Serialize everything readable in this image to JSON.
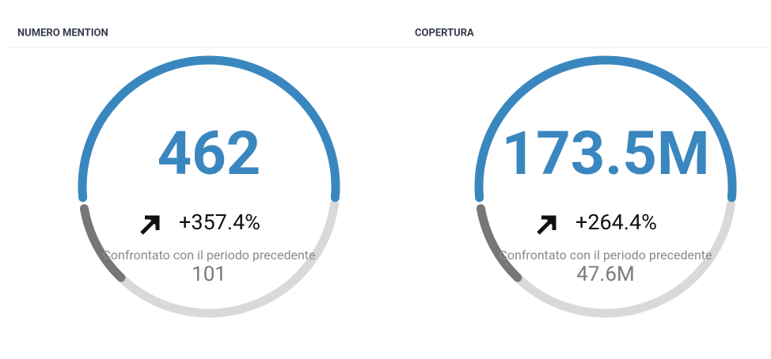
{
  "widgets": [
    {
      "title": "NUMERO MENTION",
      "value": "462",
      "change": "+357.4%",
      "comparison": "Confrontato con il periodo precedente",
      "previous": "101"
    },
    {
      "title": "COPERTURA",
      "value": "173.5M",
      "change": "+264.4%",
      "comparison": "Confrontato con il periodo precedente",
      "previous": "47.6M"
    }
  ]
}
